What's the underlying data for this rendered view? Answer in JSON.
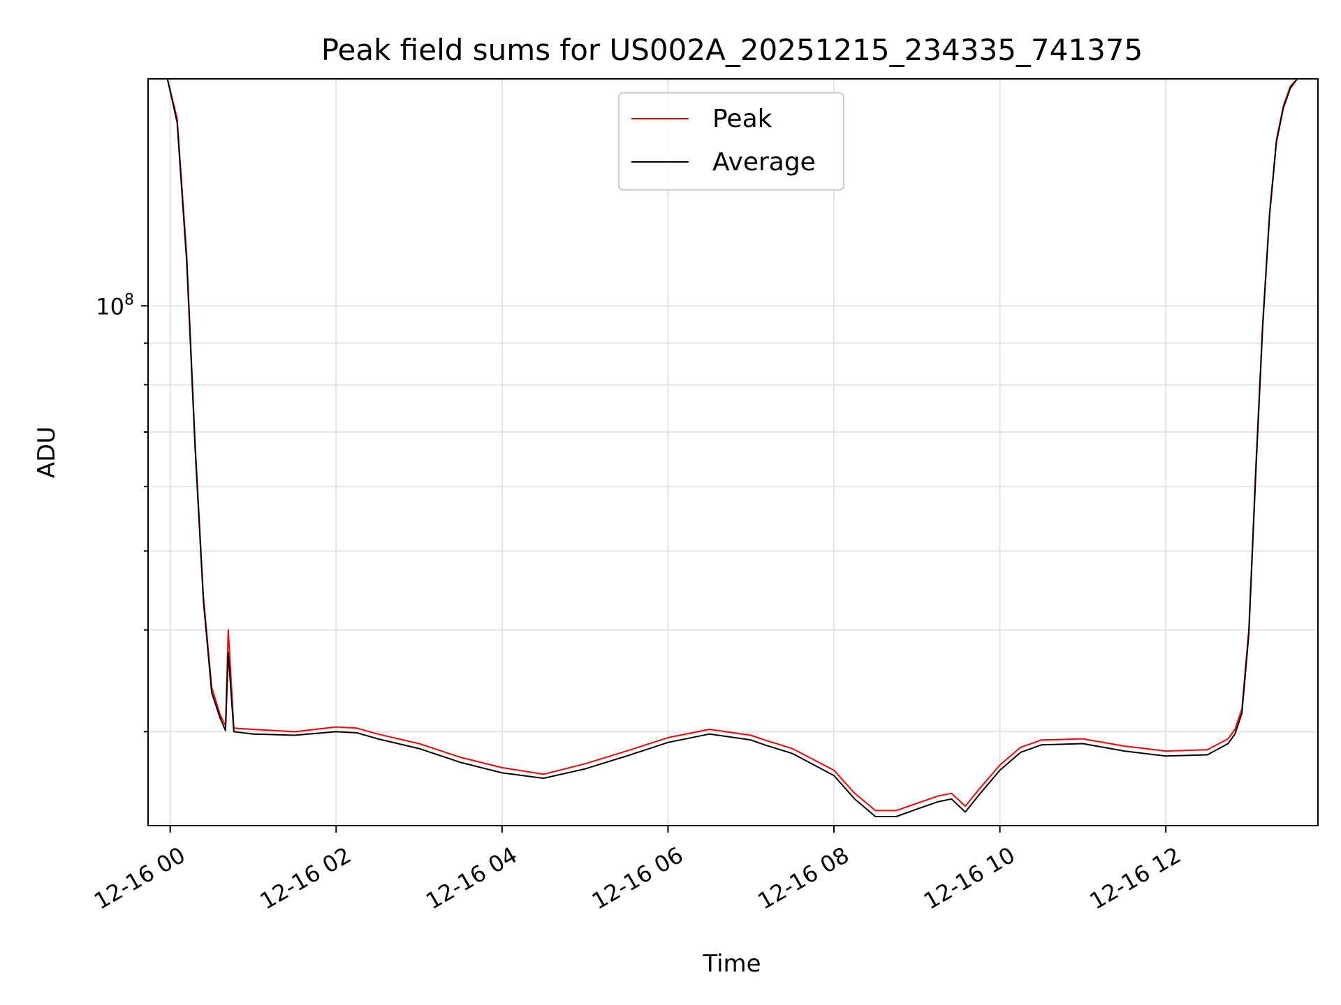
{
  "chart_data": {
    "type": "line",
    "title": "Peak field sums for US002A_20251215_234335_741375",
    "xlabel": "Time",
    "ylabel": "ADU",
    "yscale": "log",
    "xlim": [
      "12-15 23:44",
      "12-16 13:50"
    ],
    "ylim": [
      23000000,
      190000000
    ],
    "xticks": [
      {
        "value": "12-16 00:00",
        "label": "12-16 00"
      },
      {
        "value": "12-16 02:00",
        "label": "12-16 02"
      },
      {
        "value": "12-16 04:00",
        "label": "12-16 04"
      },
      {
        "value": "12-16 06:00",
        "label": "12-16 06"
      },
      {
        "value": "12-16 08:00",
        "label": "12-16 08"
      },
      {
        "value": "12-16 10:00",
        "label": "12-16 10"
      },
      {
        "value": "12-16 12:00",
        "label": "12-16 12"
      }
    ],
    "yticks_major": [
      {
        "value": 100000000,
        "label_base": "10",
        "label_exp": "8"
      }
    ],
    "grid": true,
    "legend": {
      "placement": "upper-center",
      "entries": [
        "Peak",
        "Average"
      ]
    },
    "series": [
      {
        "name": "Peak",
        "color": "#ff0000",
        "x": [
          "12-15 23:58",
          "12-16 00:05",
          "12-16 00:12",
          "12-16 00:18",
          "12-16 00:24",
          "12-16 00:30",
          "12-16 00:36",
          "12-16 00:40",
          "12-16 00:42",
          "12-16 00:46",
          "12-16 01:00",
          "12-16 01:30",
          "12-16 02:00",
          "12-16 02:15",
          "12-16 02:30",
          "12-16 03:00",
          "12-16 03:30",
          "12-16 04:00",
          "12-16 04:30",
          "12-16 05:00",
          "12-16 05:30",
          "12-16 06:00",
          "12-16 06:30",
          "12-16 07:00",
          "12-16 07:10",
          "12-16 07:30",
          "12-16 08:00",
          "12-16 08:15",
          "12-16 08:30",
          "12-16 08:45",
          "12-16 09:00",
          "12-16 09:15",
          "12-16 09:25",
          "12-16 09:35",
          "12-16 09:45",
          "12-16 10:00",
          "12-16 10:15",
          "12-16 10:30",
          "12-16 11:00",
          "12-16 11:30",
          "12-16 12:00",
          "12-16 12:30",
          "12-16 12:45",
          "12-16 12:50",
          "12-16 12:55",
          "12-16 13:00",
          "12-16 13:05",
          "12-16 13:10",
          "12-16 13:15",
          "12-16 13:20",
          "12-16 13:25",
          "12-16 13:30",
          "12-16 13:35",
          "12-16 13:40",
          "12-16 13:45"
        ],
        "values": [
          190000000,
          170000000,
          115000000,
          68000000,
          44000000,
          34000000,
          31500000,
          30500000,
          40000000,
          30300000,
          30200000,
          30000000,
          30400000,
          30300000,
          29800000,
          29000000,
          27900000,
          27100000,
          26600000,
          27400000,
          28400000,
          29500000,
          30200000,
          29700000,
          29300000,
          28600000,
          26900000,
          25200000,
          24000000,
          24000000,
          24500000,
          25000000,
          25200000,
          24300000,
          25500000,
          27300000,
          28700000,
          29300000,
          29400000,
          28800000,
          28400000,
          28500000,
          29400000,
          30200000,
          32000000,
          40000000,
          63000000,
          95000000,
          130000000,
          160000000,
          176000000,
          186000000,
          190000000,
          190000000,
          190000000
        ]
      },
      {
        "name": "Average",
        "color": "#000000",
        "x": [
          "12-15 23:58",
          "12-16 00:05",
          "12-16 00:12",
          "12-16 00:18",
          "12-16 00:24",
          "12-16 00:30",
          "12-16 00:36",
          "12-16 00:40",
          "12-16 00:42",
          "12-16 00:46",
          "12-16 01:00",
          "12-16 01:30",
          "12-16 02:00",
          "12-16 02:15",
          "12-16 02:30",
          "12-16 03:00",
          "12-16 03:30",
          "12-16 04:00",
          "12-16 04:30",
          "12-16 05:00",
          "12-16 05:30",
          "12-16 06:00",
          "12-16 06:30",
          "12-16 07:00",
          "12-16 07:10",
          "12-16 07:30",
          "12-16 08:00",
          "12-16 08:15",
          "12-16 08:30",
          "12-16 08:45",
          "12-16 09:00",
          "12-16 09:15",
          "12-16 09:25",
          "12-16 09:35",
          "12-16 09:45",
          "12-16 10:00",
          "12-16 10:15",
          "12-16 10:30",
          "12-16 11:00",
          "12-16 11:30",
          "12-16 12:00",
          "12-16 12:30",
          "12-16 12:45",
          "12-16 12:50",
          "12-16 12:55",
          "12-16 13:00",
          "12-16 13:05",
          "12-16 13:10",
          "12-16 13:15",
          "12-16 13:20",
          "12-16 13:25",
          "12-16 13:30",
          "12-16 13:35",
          "12-16 13:40",
          "12-16 13:45"
        ],
        "values": [
          190000000,
          168000000,
          113000000,
          67000000,
          43500000,
          33500000,
          31200000,
          30100000,
          37500000,
          30000000,
          29800000,
          29700000,
          30000000,
          29900000,
          29400000,
          28600000,
          27500000,
          26700000,
          26300000,
          27000000,
          28000000,
          29100000,
          29800000,
          29300000,
          28900000,
          28200000,
          26500000,
          24800000,
          23600000,
          23600000,
          24100000,
          24600000,
          24800000,
          23900000,
          25100000,
          26900000,
          28300000,
          28900000,
          29000000,
          28400000,
          28000000,
          28100000,
          29000000,
          29800000,
          31600000,
          39500000,
          62000000,
          94000000,
          129000000,
          159000000,
          175000000,
          185000000,
          190000000,
          190000000,
          190000000
        ]
      }
    ]
  }
}
